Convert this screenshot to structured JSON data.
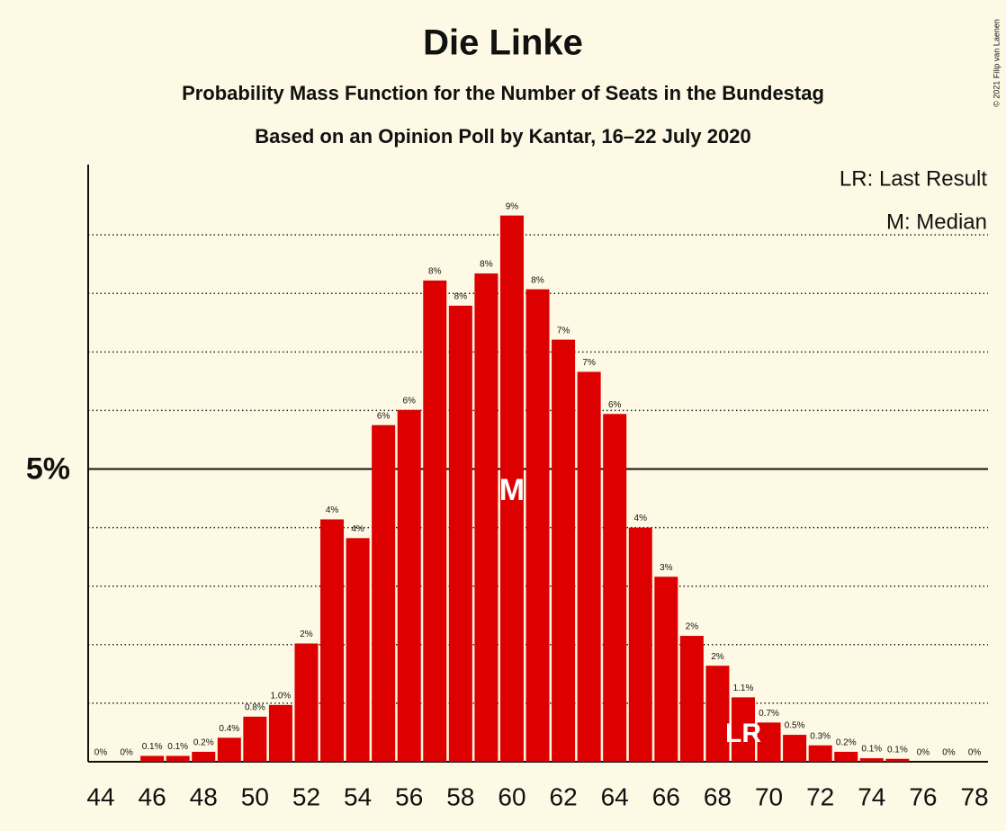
{
  "chart_data": {
    "type": "bar",
    "title": "Die Linke",
    "subtitle": "Probability Mass Function for the Number of Seats in the Bundestag",
    "subtitle2": "Based on an Opinion Poll by Kantar, 16–22 July 2020",
    "copyright": "© 2021 Filip van Laenen",
    "legend": [
      "LR: Last Result",
      "M: Median"
    ],
    "categories": [
      "44",
      null,
      "46",
      null,
      "48",
      null,
      "50",
      null,
      "52",
      null,
      "54",
      null,
      "56",
      null,
      "58",
      null,
      "60",
      null,
      "62",
      null,
      "64",
      null,
      "66",
      null,
      "68",
      null,
      "70",
      null,
      "72",
      null,
      "74",
      null,
      "76",
      null,
      "78"
    ],
    "values": [
      0,
      0,
      0.1,
      0.1,
      0.17,
      0.41,
      0.77,
      0.97,
      2.02,
      4.14,
      3.82,
      5.75,
      6.01,
      8.22,
      7.79,
      8.34,
      9.33,
      8.07,
      7.21,
      6.66,
      5.94,
      4.0,
      3.16,
      2.15,
      1.64,
      1.1,
      0.67,
      0.46,
      0.28,
      0.17,
      0.06,
      0.05,
      0,
      0,
      0
    ],
    "value_labels": [
      "0%",
      "0%",
      "0.1%",
      "0.1%",
      "0.2%",
      "0.4%",
      "0.8%",
      "1.0%",
      "2%",
      "4%",
      "4%",
      "6%",
      "6%",
      "8%",
      "8%",
      "8%",
      "9%",
      "8%",
      "7%",
      "7%",
      "6%",
      "4%",
      "3%",
      "2%",
      "2%",
      "1.1%",
      "0.7%",
      "0.5%",
      "0.3%",
      "0.2%",
      "0.1%",
      "0.1%",
      "0%",
      "0%",
      "0%"
    ],
    "color": "#dd0000",
    "ylim": [
      0,
      10.2
    ],
    "yticks": [
      {
        "value": 5,
        "label": "5%"
      }
    ],
    "minor_gridlines": [
      1,
      2,
      3,
      4,
      6,
      7,
      8,
      9
    ],
    "median_index": 16,
    "median_label": "M",
    "last_result_index": 25,
    "last_result_label": "LR"
  }
}
